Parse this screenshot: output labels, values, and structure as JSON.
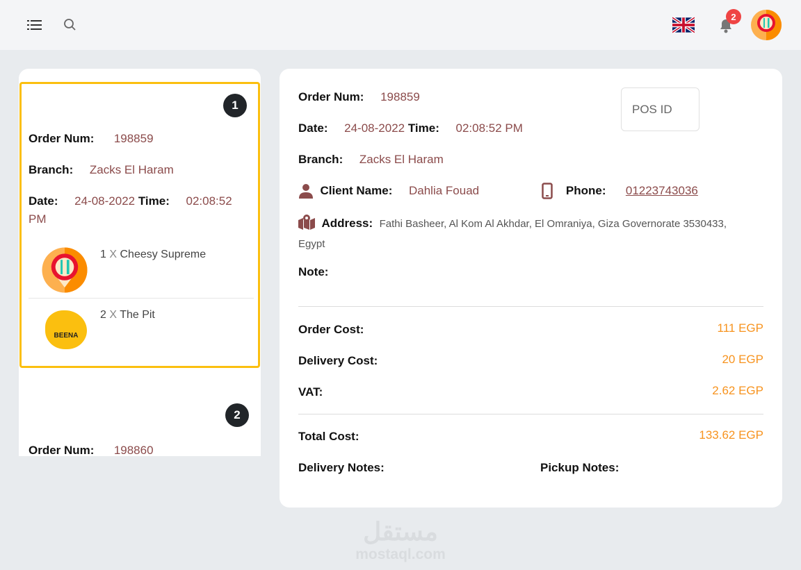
{
  "header": {
    "notifications_count": "2",
    "icons": [
      "menu-icon",
      "search-icon",
      "uk-flag-icon",
      "bell-icon",
      "avatar"
    ]
  },
  "orders": [
    {
      "index": "1",
      "order_num_label": "Order Num:",
      "order_num": "198859",
      "branch_label": "Branch:",
      "branch": "Zacks El Haram",
      "date_label": "Date:",
      "date": "24-08-2022",
      "time_label": "Time:",
      "time": "02:08:52 PM",
      "items": [
        {
          "qty": "1",
          "x": "X",
          "name": "Cheesy Supreme"
        },
        {
          "qty": "2",
          "x": "X",
          "name": "The Pit",
          "logo_text": "BEENA"
        }
      ]
    },
    {
      "index": "2",
      "order_num_label": "Order Num:",
      "order_num": "198860"
    }
  ],
  "detail": {
    "order_num_label": "Order Num:",
    "order_num": "198859",
    "pos_placeholder": "POS ID",
    "date_label": "Date:",
    "date": "24-08-2022",
    "time_label": "Time:",
    "time": "02:08:52 PM",
    "branch_label": "Branch:",
    "branch": "Zacks El Haram",
    "client_label": "Client Name:",
    "client": "Dahlia Fouad",
    "phone_label": "Phone:",
    "phone": "01223743036",
    "address_label": "Address:",
    "address": "Fathi Basheer, Al Kom Al Akhdar, El Omraniya, Giza Governorate 3530433, Egypt",
    "note_label": "Note:",
    "order_cost_label": "Order Cost:",
    "order_cost": "111 EGP",
    "delivery_cost_label": "Delivery Cost:",
    "delivery_cost": "20 EGP",
    "vat_label": "VAT:",
    "vat": "2.62 EGP",
    "total_label": "Total Cost:",
    "total": "133.62 EGP",
    "delivery_notes_label": "Delivery Notes:",
    "pickup_notes_label": "Pickup Notes:"
  },
  "watermark": {
    "arabic": "مستقل",
    "latin": "mostaql.com"
  },
  "colors": {
    "accent": "#fbbf0f",
    "value": "#8b4b4b",
    "amount": "#f7931e",
    "badge": "#ef4444"
  }
}
